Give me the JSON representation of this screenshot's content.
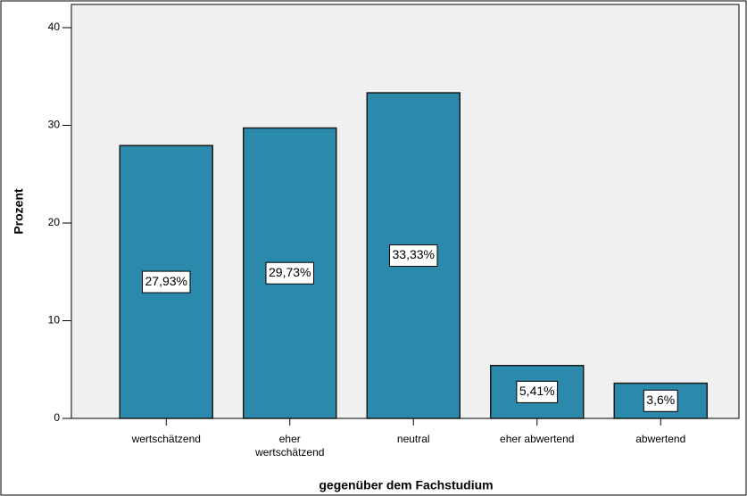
{
  "chart_data": {
    "type": "bar",
    "x_label": "gegenüber dem Fachstudium",
    "y_label": "Prozent",
    "categories": [
      "wertschätzend",
      "eher wertschätzend",
      "neutral",
      "eher abwertend",
      "abwertend"
    ],
    "values": [
      27.93,
      29.73,
      33.33,
      5.41,
      3.6
    ],
    "value_labels": [
      "27,93%",
      "29,73%",
      "33,33%",
      "5,41%",
      "3,6%"
    ],
    "color": "#2b8aac",
    "ylim": [
      0,
      42.4
    ],
    "yticks": [
      0,
      10,
      20,
      30,
      40
    ],
    "grid": false
  }
}
